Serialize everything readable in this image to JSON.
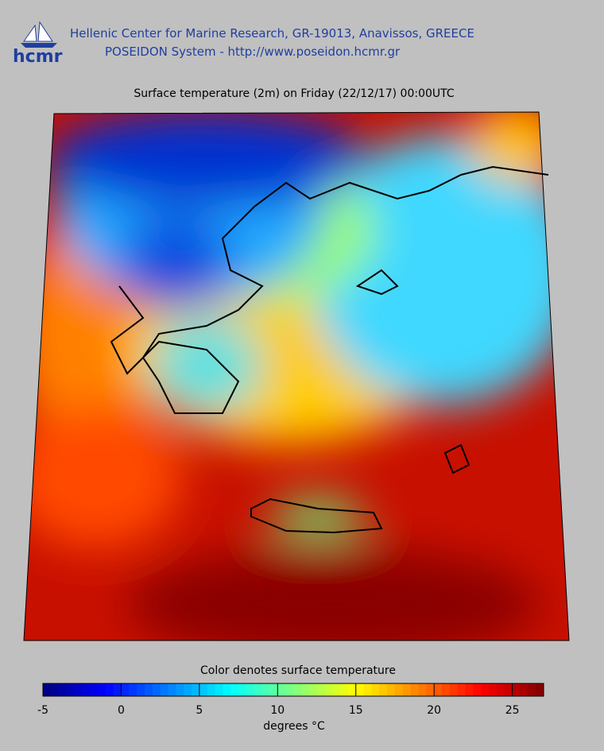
{
  "header": {
    "logo_text": "hcmr",
    "line1": "Hellenic Center for Marine Research, GR-19013, Anavissos, GREECE",
    "line2": "POSEIDON System - http://www.poseidon.hcmr.gr"
  },
  "map": {
    "title": "Surface temperature (2m) on Friday (22/12/17) 00:00UTC"
  },
  "colorbar": {
    "title": "Color denotes surface temperature",
    "range": [
      -5,
      27
    ],
    "ticks": [
      -5,
      0,
      5,
      10,
      15,
      20,
      25
    ],
    "unit_label": "degrees °C"
  }
}
